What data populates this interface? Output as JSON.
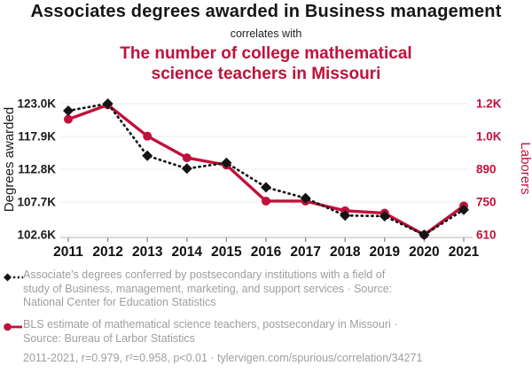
{
  "header": {
    "title": "Associates degrees awarded in Business management",
    "connector": "correlates with",
    "subtitle_lines": {
      "0": "The number of college mathematical",
      "1": "science teachers in Missouri"
    }
  },
  "colors": {
    "accent_red": "#c0113a",
    "series_black": "#141414",
    "legend_gray": "#9e9e9e",
    "gridline": "#ececec",
    "axis_line": "#c4c4c4"
  },
  "chart_data": {
    "type": "line",
    "x": [
      2011,
      2012,
      2013,
      2014,
      2015,
      2016,
      2017,
      2018,
      2019,
      2020,
      2021
    ],
    "x_tick_labels": [
      "2011",
      "2012",
      "2013",
      "2014",
      "2015",
      "2016",
      "2017",
      "2018",
      "2019",
      "2020",
      "2021"
    ],
    "series": [
      {
        "name": "Associate's degrees awarded in Business management",
        "axis": "left",
        "color": "#141414",
        "line_style": "dotted",
        "marker": "diamond",
        "values": [
          121900,
          123000,
          114900,
          112900,
          113800,
          110000,
          108300,
          105600,
          105500,
          102600,
          106500
        ]
      },
      {
        "name": "College mathematical science teachers in Missouri",
        "axis": "right",
        "color": "#c0113a",
        "line_style": "solid",
        "marker": "circle",
        "values": [
          1090,
          1150,
          1020,
          930,
          900,
          750,
          750,
          710,
          700,
          610,
          730
        ]
      }
    ],
    "left_axis": {
      "label": "Degrees awarded",
      "tick_labels": [
        "123.0K",
        "117.9K",
        "112.8K",
        "107.7K",
        "102.6K"
      ],
      "min": 102600,
      "max": 123000
    },
    "right_axis": {
      "label": "Laborers",
      "tick_labels": [
        "1.2K",
        "1.0K",
        "890",
        "750",
        "610"
      ],
      "min": 610,
      "max": 1155
    },
    "grid": true,
    "legend_position": "below"
  },
  "legend": {
    "items": {
      "0": {
        "lines": {
          "0": "Associate's degrees conferred by postsecondary institutions with a field of",
          "1": "study of Business, management, marketing, and support services · Source:",
          "2": "National Center for Education Statistics"
        }
      },
      "1": {
        "lines": {
          "0": "BLS estimate of mathematical science teachers, postsecondary in Missouri ·",
          "1": "Source: Bureau of Larbor Statistics"
        }
      }
    }
  },
  "footer": {
    "text": "2011-2021, r=0.979, r²=0.958, p<0.01 · tylervigen.com/spurious/correlation/34271"
  }
}
